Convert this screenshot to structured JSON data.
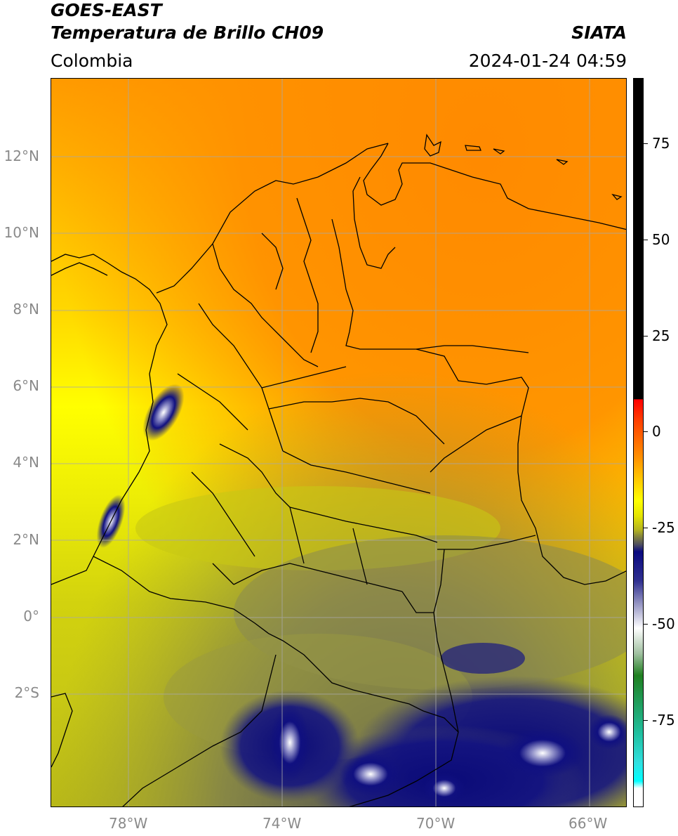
{
  "header": {
    "satellite": "GOES-EAST",
    "product": "Temperatura de Brillo CH09",
    "region": "Colombia",
    "agency": "SIATA",
    "timestamp": "2024-01-24 04:59"
  },
  "axes": {
    "lon_ticks": [
      "78°W",
      "74°W",
      "70°W",
      "66°W"
    ],
    "lat_ticks": [
      "12°N",
      "10°N",
      "8°N",
      "6°N",
      "4°N",
      "2°N",
      "0°",
      "2°S"
    ]
  },
  "colorbar": {
    "ticks": [
      "75",
      "50",
      "25",
      "0",
      "-25",
      "-50",
      "-75"
    ]
  },
  "colors": {
    "orange": "#ff8c00",
    "yellow": "#ffff00",
    "olive": "#b4b414",
    "gray": "#707050",
    "navy": "#0a0a80",
    "white": "#ffffff"
  }
}
